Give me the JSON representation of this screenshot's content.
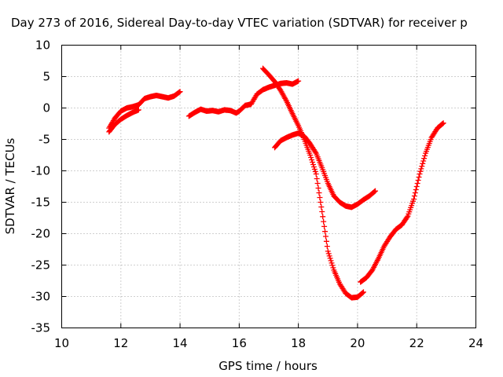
{
  "chart_data": {
    "type": "scatter",
    "title": "Day 273 of 2016, Sidereal Day-to-day VTEC variation (SDTVAR) for receiver p",
    "xlabel": "GPS time / hours",
    "ylabel": "SDTVAR / TECUs",
    "xlim": [
      10,
      24
    ],
    "ylim": [
      -35,
      10
    ],
    "xticks": [
      10,
      12,
      14,
      16,
      18,
      20,
      22,
      24
    ],
    "yticks": [
      -35,
      -30,
      -25,
      -20,
      -15,
      -10,
      -5,
      0,
      5,
      10
    ],
    "grid": true,
    "marker": "+",
    "color": "#ff0000",
    "series": [
      {
        "x": [
          11.6,
          11.8,
          12.0,
          12.2,
          12.4,
          12.6,
          12.8,
          13.0,
          13.2,
          13.4,
          13.6,
          13.8,
          14.0
        ],
        "y": [
          -3.2,
          -1.6,
          -0.5,
          0.0,
          0.2,
          0.5,
          1.5,
          1.8,
          2.0,
          1.8,
          1.6,
          1.9,
          2.6
        ]
      },
      {
        "x": [
          11.6,
          11.8,
          12.0,
          12.2,
          12.4,
          12.6
        ],
        "y": [
          -3.8,
          -2.6,
          -1.8,
          -1.2,
          -0.7,
          -0.3
        ]
      },
      {
        "x": [
          14.3,
          14.5,
          14.7,
          14.9,
          15.1,
          15.3,
          15.5,
          15.7,
          15.9,
          16.0,
          16.2,
          16.4,
          16.6,
          16.8,
          17.0,
          17.2,
          17.4,
          17.6,
          17.8,
          18.0
        ],
        "y": [
          -1.3,
          -0.7,
          -0.2,
          -0.5,
          -0.4,
          -0.6,
          -0.3,
          -0.4,
          -0.8,
          -0.5,
          0.4,
          0.6,
          2.2,
          2.9,
          3.3,
          3.6,
          3.9,
          4.0,
          3.8,
          4.3
        ]
      },
      {
        "x": [
          16.8,
          17.0,
          17.2,
          17.4,
          17.6,
          17.8,
          18.0,
          18.2,
          18.4,
          18.6,
          18.8,
          19.0,
          19.2,
          19.4,
          19.6,
          19.8,
          20.0,
          20.2
        ],
        "y": [
          6.3,
          5.3,
          4.2,
          2.8,
          1.1,
          -0.9,
          -2.8,
          -5.0,
          -7.5,
          -10.5,
          -16.5,
          -22.8,
          -25.8,
          -28.0,
          -29.5,
          -30.2,
          -30.1,
          -29.3
        ]
      },
      {
        "x": [
          17.2,
          17.4,
          17.6,
          17.8,
          18.0,
          18.2,
          18.4,
          18.6,
          18.8,
          19.0,
          19.2,
          19.4,
          19.6,
          19.8,
          20.0,
          20.2,
          20.4,
          20.6
        ],
        "y": [
          -6.3,
          -5.2,
          -4.7,
          -4.3,
          -4.0,
          -4.5,
          -5.7,
          -7.2,
          -9.5,
          -12.0,
          -14.0,
          -15.0,
          -15.6,
          -15.8,
          -15.3,
          -14.6,
          -14.0,
          -13.2
        ]
      },
      {
        "x": [
          20.1,
          20.3,
          20.5,
          20.7,
          20.9,
          21.1,
          21.3,
          21.5,
          21.7,
          21.9,
          22.1,
          22.3,
          22.5,
          22.7,
          22.9
        ],
        "y": [
          -27.7,
          -27.0,
          -25.8,
          -24.0,
          -22.0,
          -20.5,
          -19.3,
          -18.6,
          -17.2,
          -14.5,
          -10.5,
          -7.2,
          -4.7,
          -3.2,
          -2.4
        ]
      }
    ]
  }
}
